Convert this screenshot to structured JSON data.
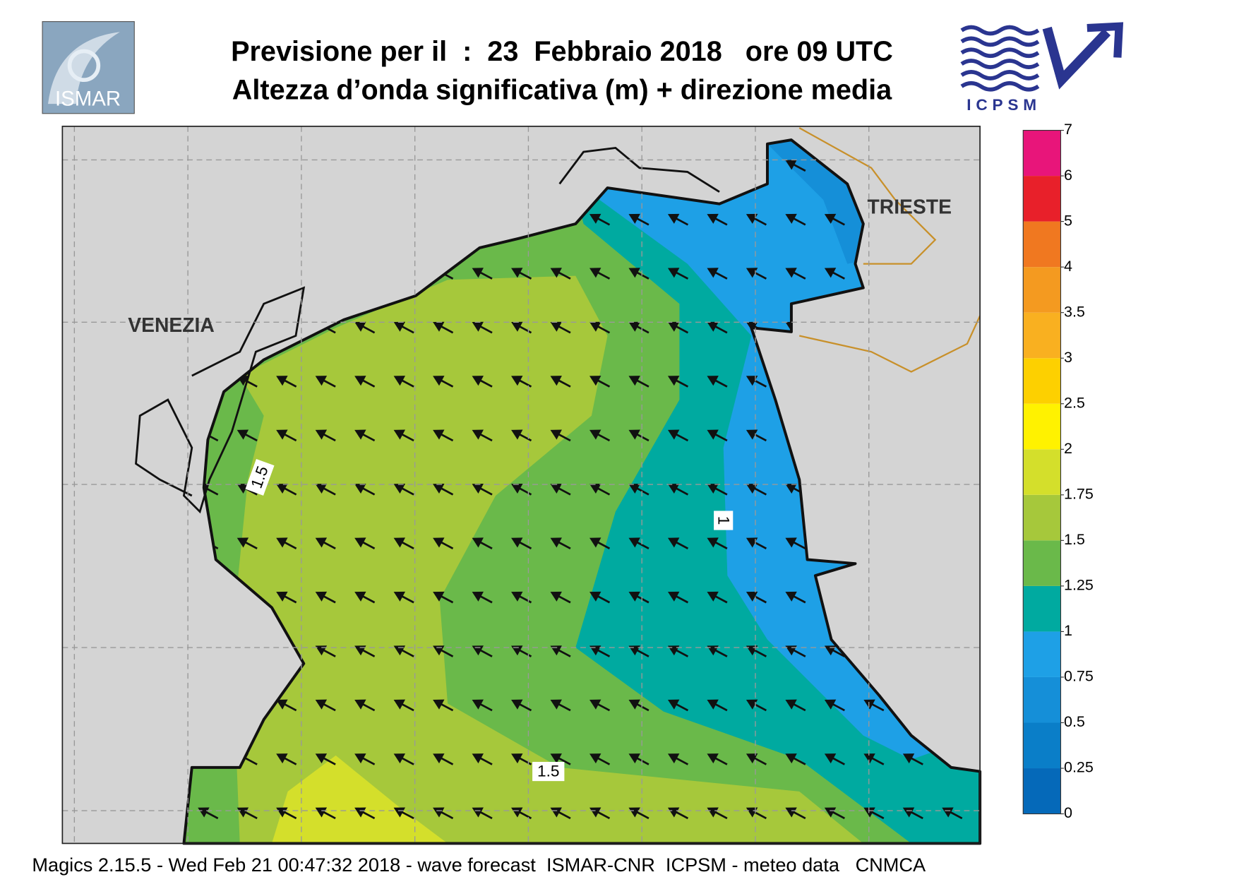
{
  "header": {
    "title": "Previsione per il  :  23  Febbraio 2018   ore 09 UTC",
    "subtitle": "Altezza d’onda significativa (m) + direzione media",
    "logos": [
      "ISMAR",
      "ICPSM"
    ]
  },
  "map": {
    "places": [
      "VENEZIA",
      "TRIESTE"
    ],
    "contour_labels": [
      "1.5",
      "1",
      "1.5"
    ]
  },
  "legend": {
    "ticks": [
      0,
      0.25,
      0.5,
      0.75,
      1,
      1.25,
      1.5,
      1.75,
      2,
      2.5,
      3,
      3.5,
      4,
      5,
      6,
      7
    ],
    "colors": [
      "#0569b9",
      "#0a7ec8",
      "#158fd8",
      "#1ea0e6",
      "#00aaa0",
      "#6ab94a",
      "#a6c83b",
      "#d4df2b",
      "#fff200",
      "#fdd000",
      "#f9b020",
      "#f49a20",
      "#f07820",
      "#e8202a",
      "#e8157a"
    ]
  },
  "footer": "Magics 2.15.5 - Wed Feb 21 00:47:32 2018 - wave forecast  ISMAR-CNR  ICPSM - meteo data   CNMCA"
}
